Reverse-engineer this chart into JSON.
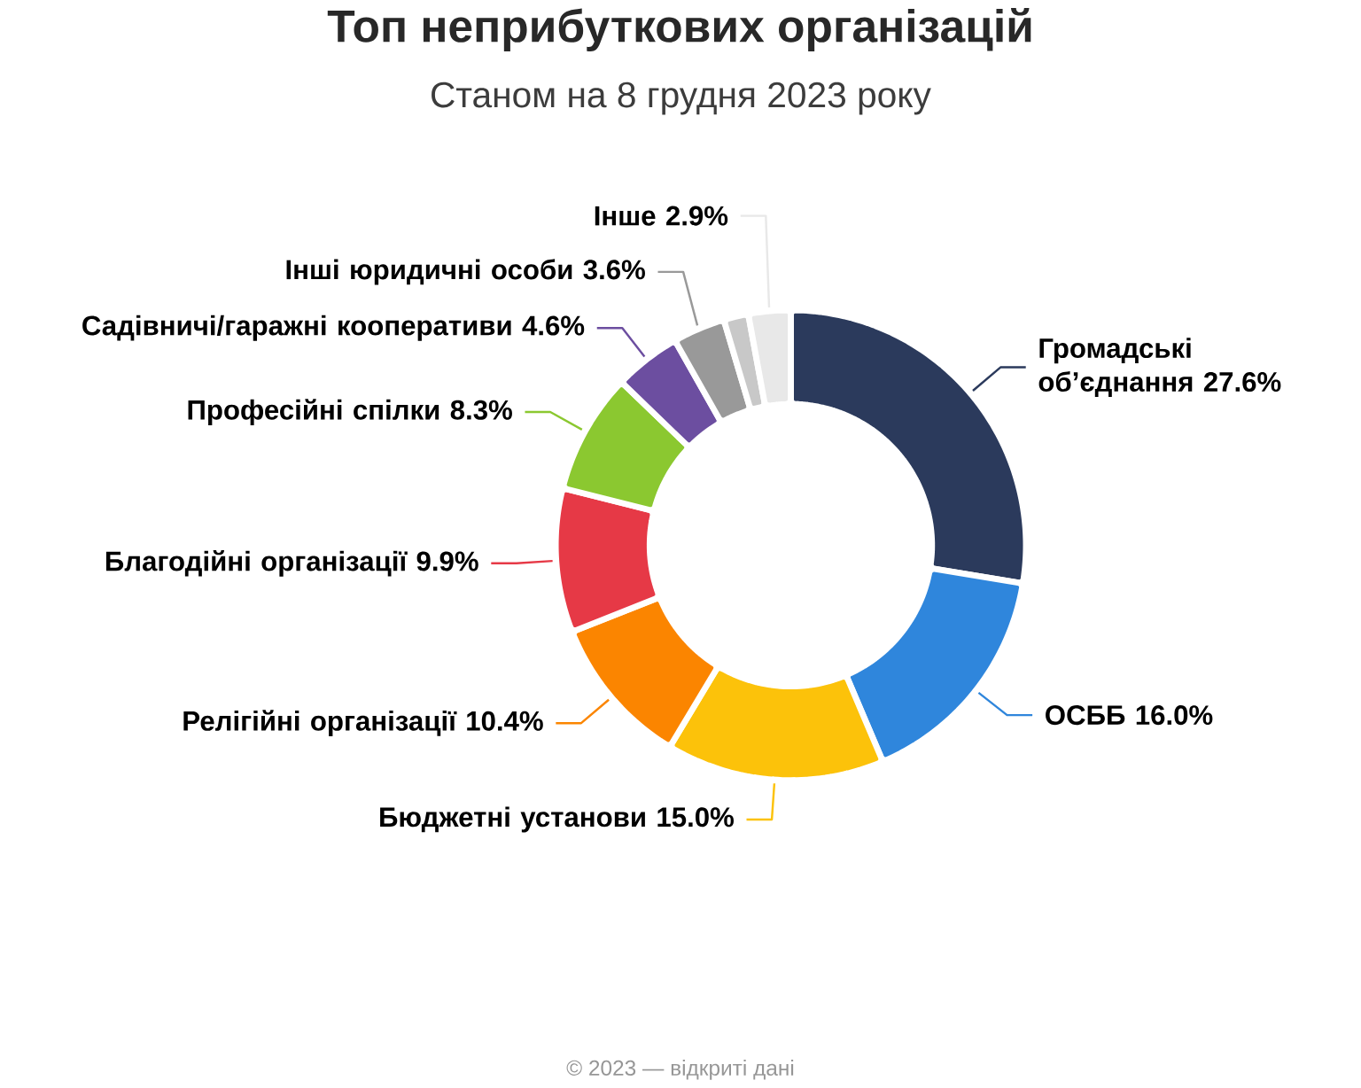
{
  "chart_data": {
    "type": "donut",
    "title": "Топ неприбуткових організацій",
    "subtitle": "Станом на 8 грудня 2023 року",
    "categories": [
      "Громадські об’єднання",
      "ОСББ",
      "Бюджетні установи",
      "Релігійні організації",
      "Благодійні організації",
      "Професійні спілки",
      "Садівничі/гаражні кооперативи",
      "Інші юридичні особи",
      null,
      "Інше"
    ],
    "values": [
      27.6,
      16.0,
      15.0,
      10.4,
      9.9,
      8.3,
      4.6,
      3.6,
      1.7,
      2.9
    ],
    "colors": [
      "#2b3a5c",
      "#2f86dc",
      "#fcc20a",
      "#fb8500",
      "#e63946",
      "#8bc830",
      "#6c4ea0",
      "#999999",
      "#c8c8c8",
      "#e8e8e8"
    ],
    "value_labels": [
      "27.6%",
      "16.0%",
      "15.0%",
      "10.4%",
      "9.9%",
      "8.3%",
      "4.6%",
      "3.6%",
      null,
      "2.9%"
    ],
    "annotations": [
      "© 2023 — відкриті дані"
    ]
  }
}
